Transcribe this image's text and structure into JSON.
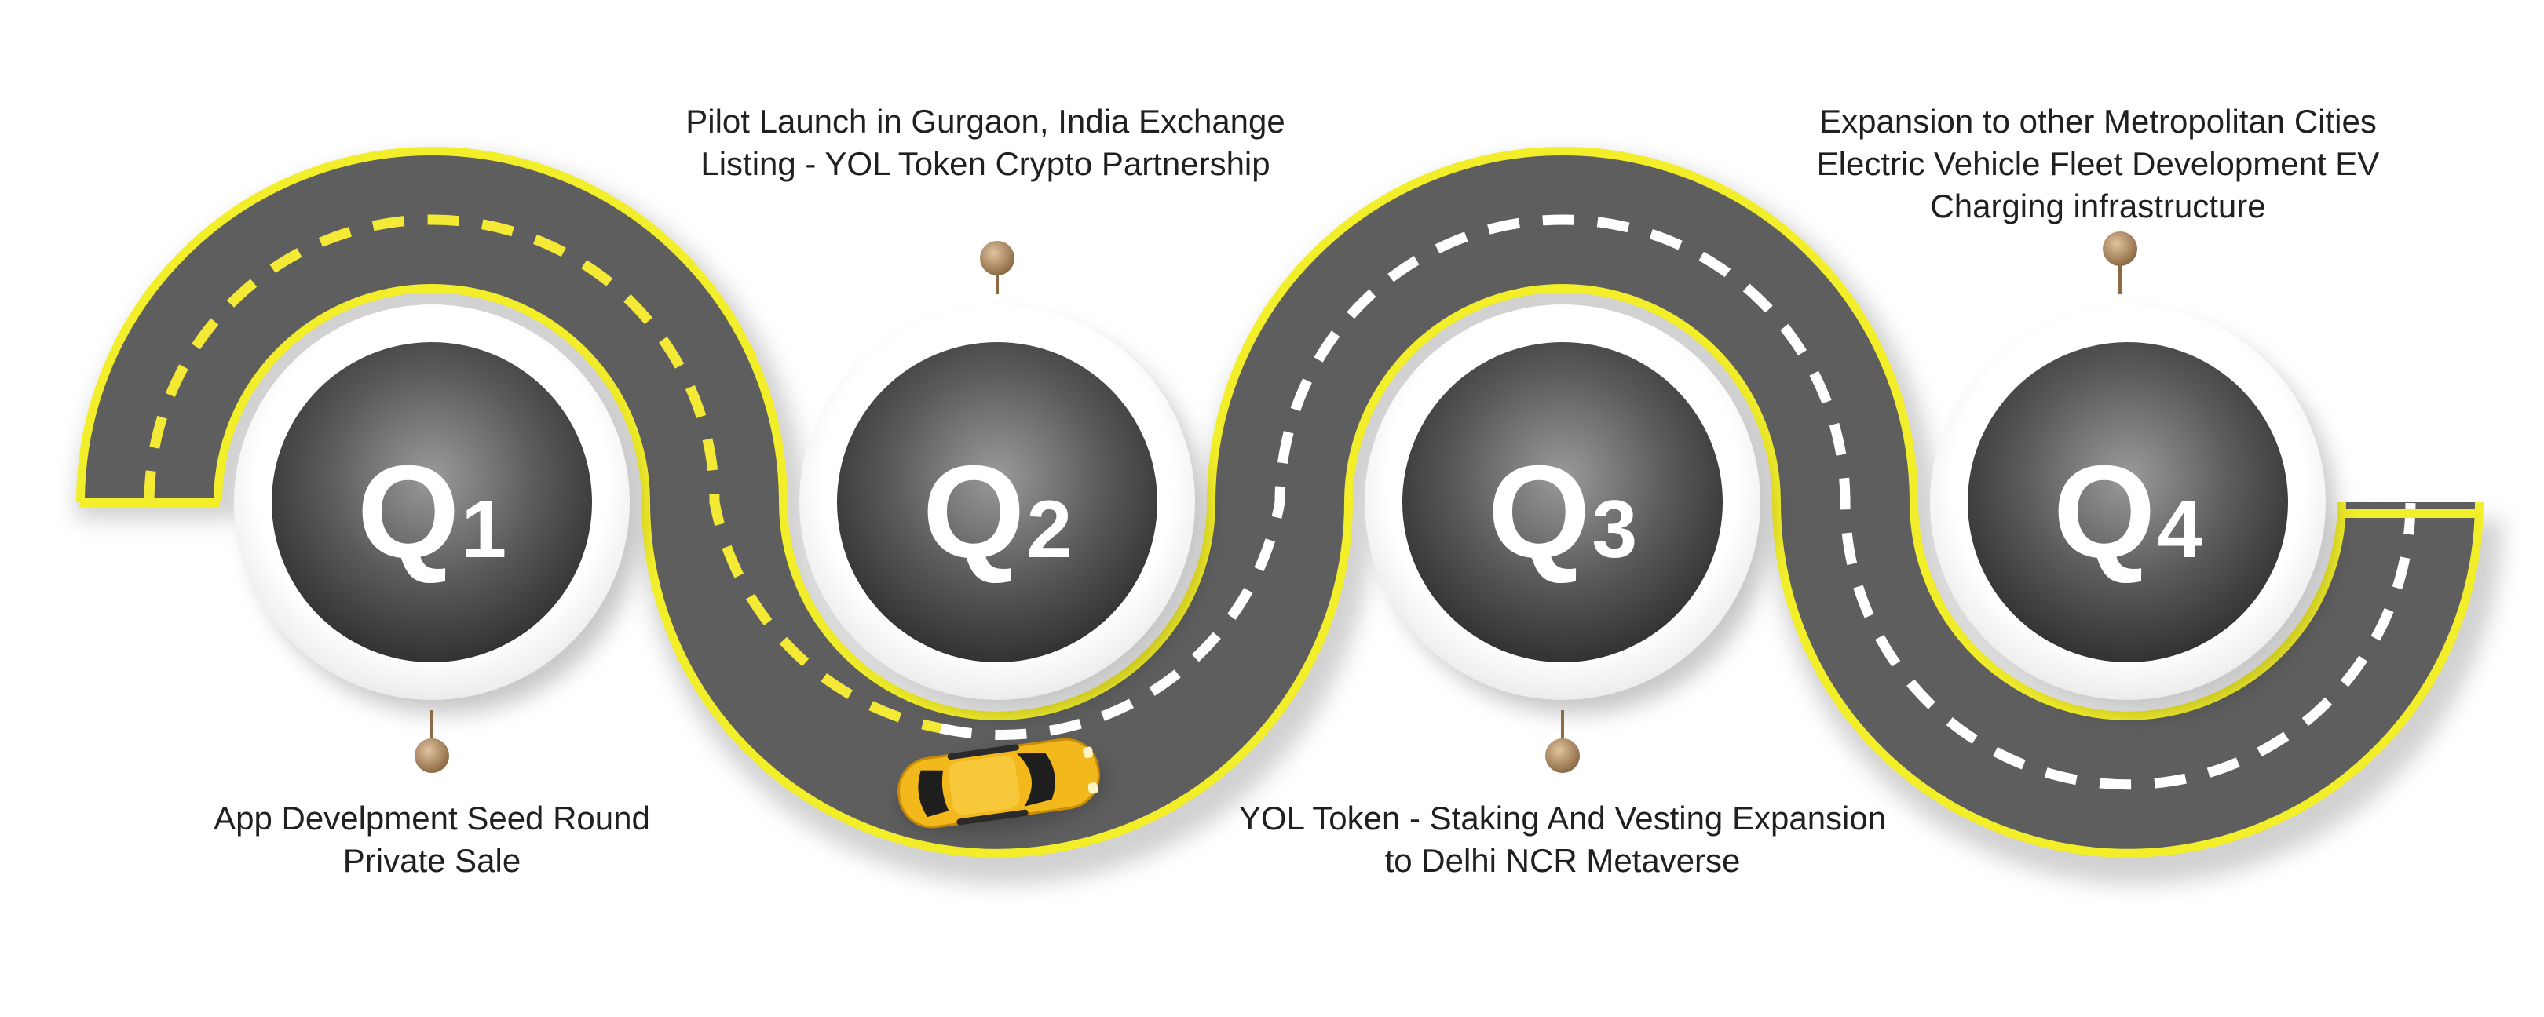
{
  "colors": {
    "road": "#5e5e5e",
    "road_edge": "#f2ee2a",
    "dash_yellow": "#f4ea36",
    "dash_white": "#ffffff",
    "pin": "#b08a62",
    "circle_fill": "#3d3d3d",
    "car": "#f2b81c",
    "text": "#202020"
  },
  "milestones": [
    {
      "quarter": "Q",
      "number": "1",
      "lines": [
        "App Develpment Seed Round",
        "Private Sale"
      ]
    },
    {
      "quarter": "Q",
      "number": "2",
      "lines": [
        "Pilot Launch in Gurgaon, India Exchange",
        "Listing - YOL Token Crypto Partnership"
      ]
    },
    {
      "quarter": "Q",
      "number": "3",
      "lines": [
        "YOL Token - Staking And Vesting Expansion",
        "to Delhi NCR Metaverse"
      ]
    },
    {
      "quarter": "Q",
      "number": "4",
      "lines": [
        "Expansion to other Metropolitan Cities",
        "Electric Vehicle Fleet Development EV",
        "Charging infrastructure"
      ]
    }
  ],
  "icons": {
    "car": "car-icon",
    "pin": "map-pin-icon"
  }
}
